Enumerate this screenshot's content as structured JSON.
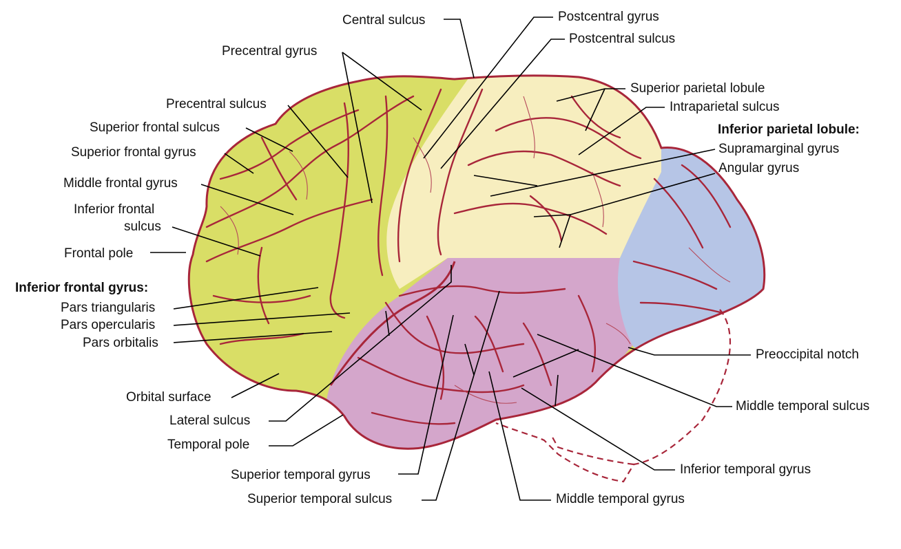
{
  "labels": {
    "central_sulcus": "Central sulcus",
    "postcentral_gyrus": "Postcentral gyrus",
    "postcentral_sulcus": "Postcentral sulcus",
    "precentral_gyrus": "Precentral gyrus",
    "superior_parietal_lobule": "Superior parietal lobule",
    "intraparietal_sulcus": "Intraparietal sulcus",
    "inferior_parietal_lobule_heading": "Inferior parietal lobule:",
    "supramarginal_gyrus": "Supramarginal gyrus",
    "angular_gyrus": "Angular gyrus",
    "precentral_sulcus": "Precentral sulcus",
    "superior_frontal_sulcus": "Superior frontal sulcus",
    "superior_frontal_gyrus": "Superior frontal gyrus",
    "middle_frontal_gyrus": "Middle frontal gyrus",
    "inferior_frontal_sulcus_line1": "Inferior frontal",
    "inferior_frontal_sulcus_line2": "sulcus",
    "frontal_pole": "Frontal pole",
    "inferior_frontal_gyrus_heading": "Inferior frontal gyrus:",
    "pars_triangularis": "Pars triangularis",
    "pars_opercularis": "Pars opercularis",
    "pars_orbitalis": "Pars orbitalis",
    "orbital_surface": "Orbital surface",
    "lateral_sulcus": "Lateral sulcus",
    "temporal_pole": "Temporal pole",
    "superior_temporal_gyrus": "Superior temporal gyrus",
    "superior_temporal_sulcus": "Superior temporal sulcus",
    "middle_temporal_gyrus": "Middle temporal gyrus",
    "inferior_temporal_gyrus": "Inferior temporal gyrus",
    "middle_temporal_sulcus": "Middle temporal sulcus",
    "preoccipital_notch": "Preoccipital notch"
  },
  "colors": {
    "frontal_lobe": "#d9de66",
    "parietal_lobe": "#f7eebf",
    "temporal_lobe": "#d4a6cb",
    "occipital_lobe": "#b6c5e6",
    "vessel": "#a8263a"
  }
}
